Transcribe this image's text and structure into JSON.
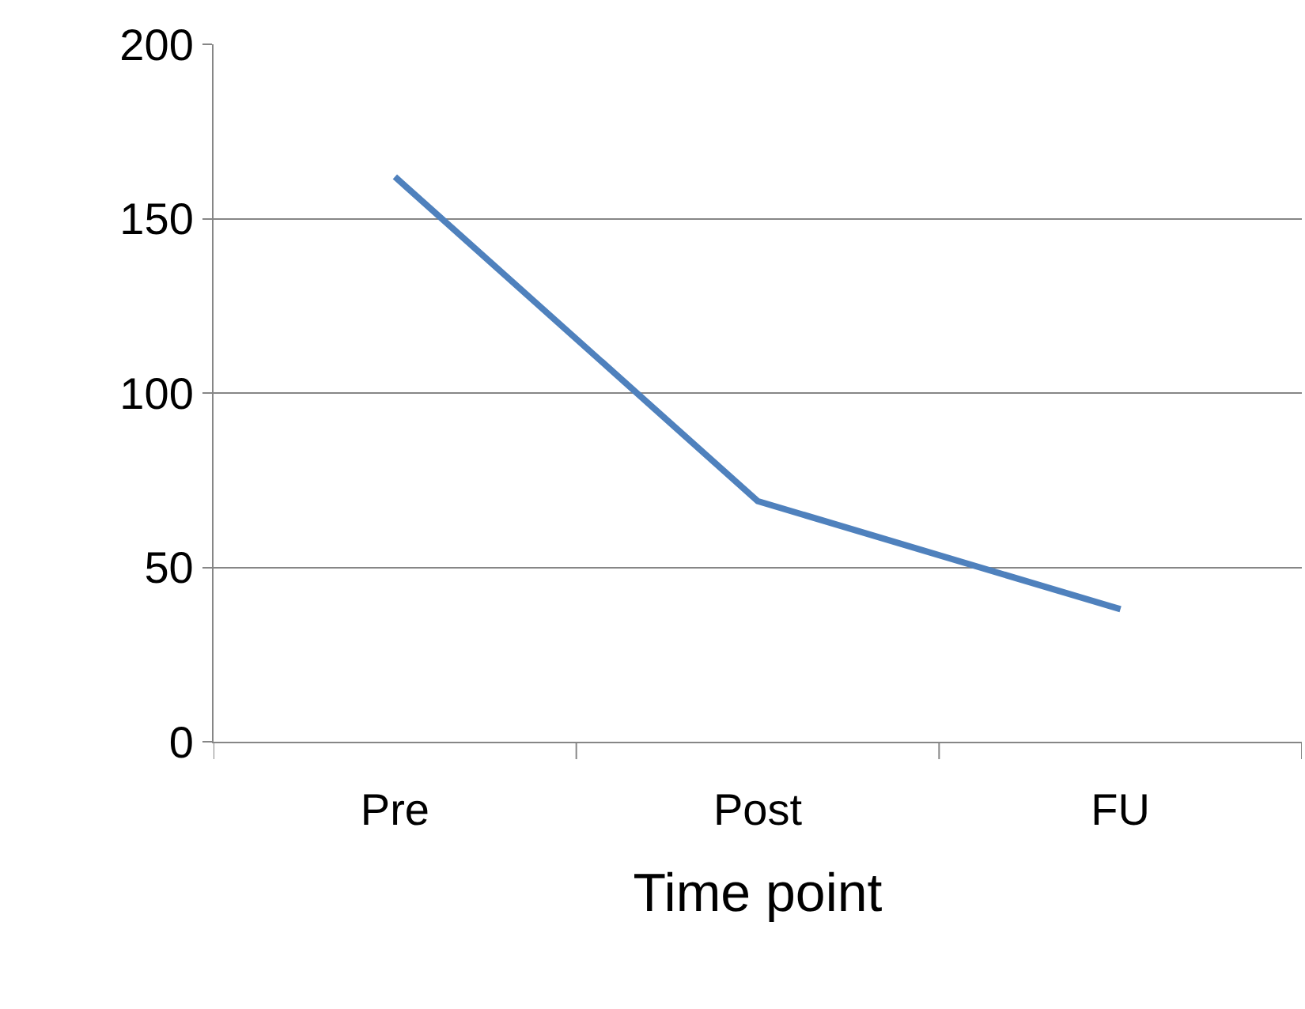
{
  "chart_data": {
    "type": "line",
    "xlabel": "Time point",
    "categories": [
      "Pre",
      "Post",
      "FU"
    ],
    "series": [
      {
        "color": "#4f81bd",
        "values": [
          162,
          69,
          38
        ]
      }
    ],
    "ylim": [
      0,
      200
    ],
    "yticks": [
      0,
      50,
      100,
      150,
      200
    ],
    "grid": "y",
    "legend": false,
    "marker": "none",
    "line_style": "solid"
  }
}
